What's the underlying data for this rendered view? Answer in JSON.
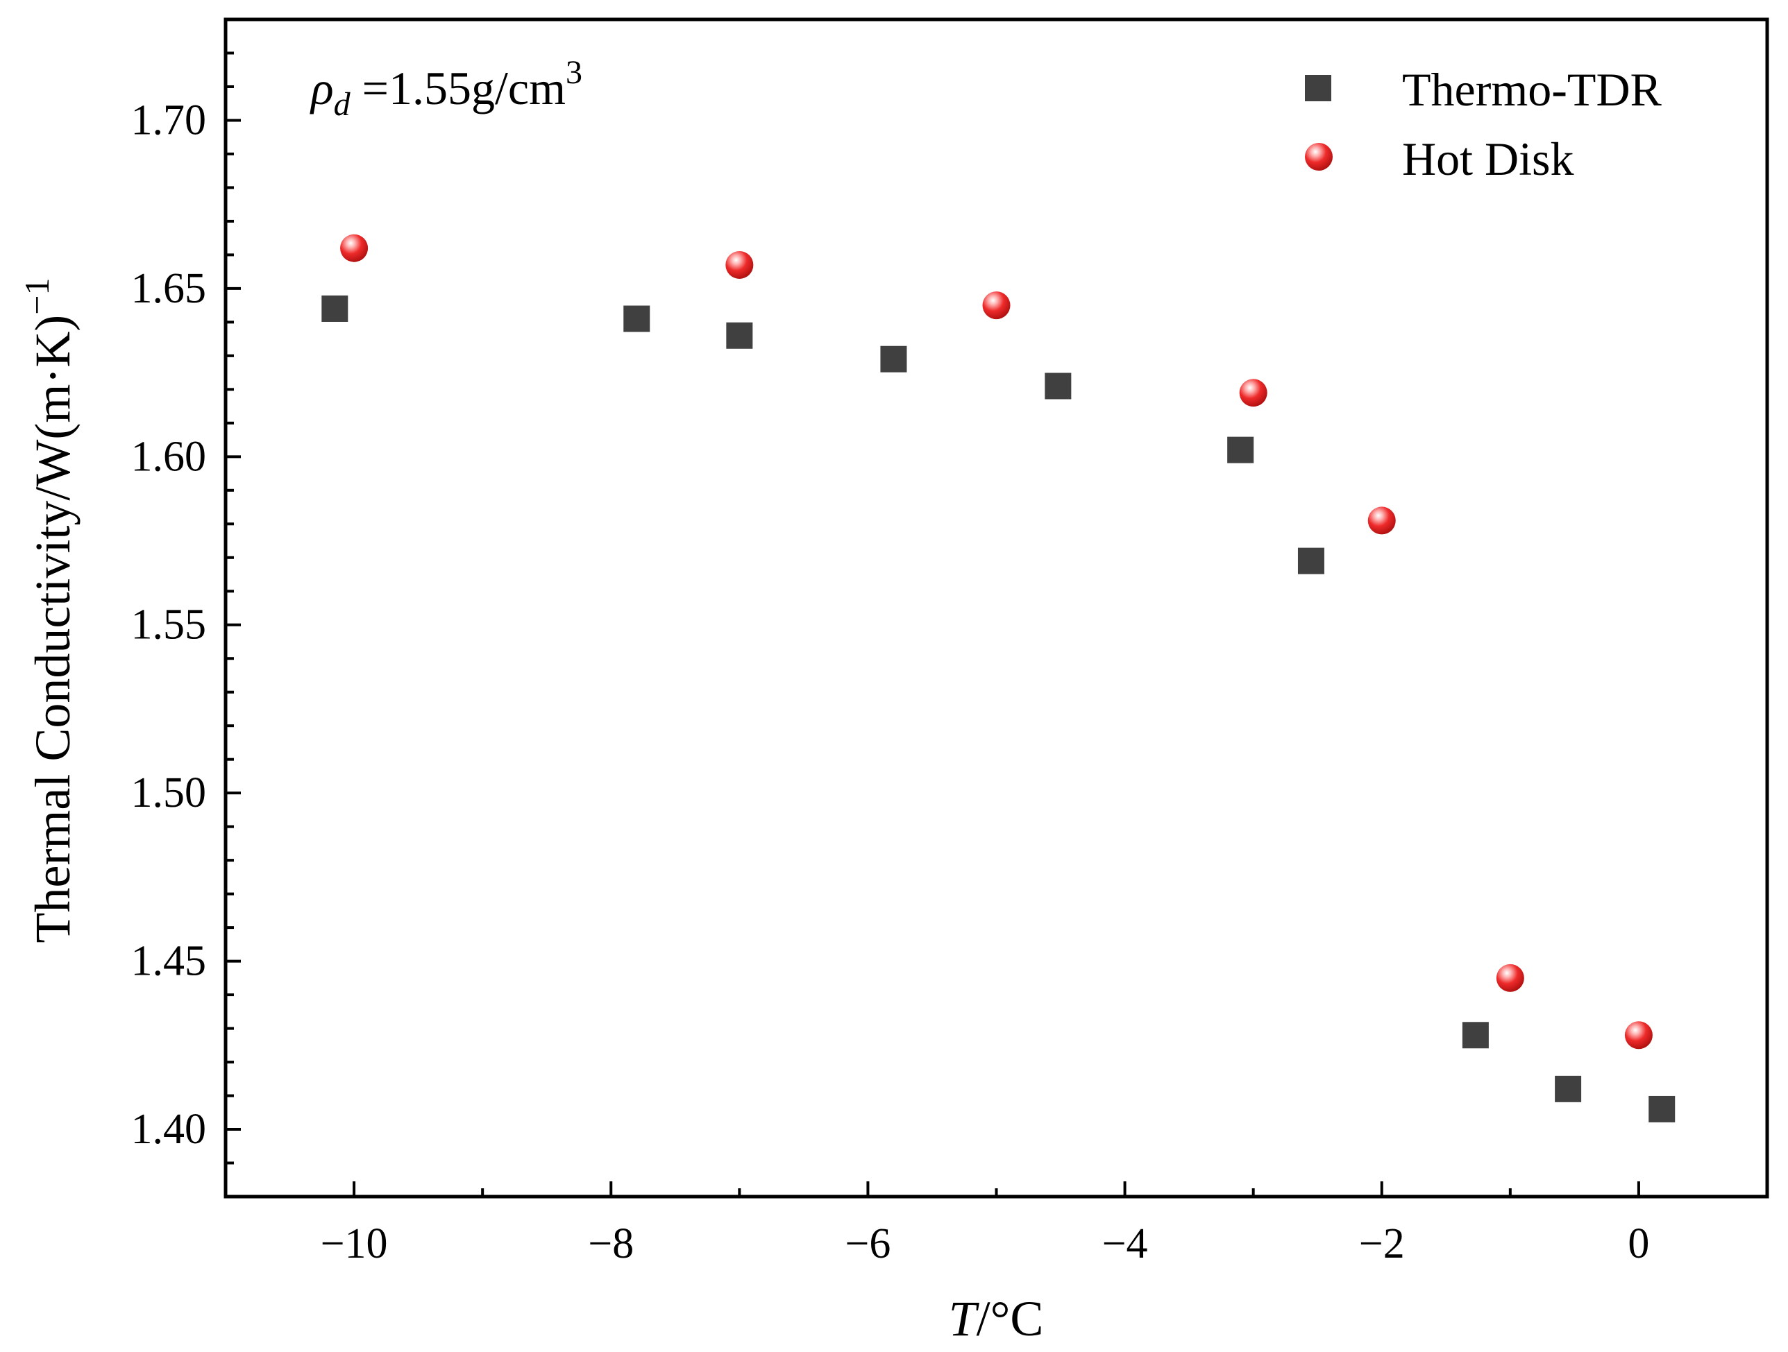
{
  "chart_data": {
    "type": "scatter",
    "title": "",
    "xlabel_italic": "T",
    "xlabel_rest": "/°C",
    "ylabel": "Thermal Conductivity/W(m·K)",
    "ylabel_sup": "−1",
    "annotation": {
      "symbol": "ρ",
      "subscript": "d",
      "text": " =1.55g/cm",
      "sup": "3"
    },
    "xlim": [
      -11,
      1
    ],
    "ylim": [
      1.38,
      1.73
    ],
    "x_ticks": [
      -10,
      -8,
      -6,
      -4,
      -2,
      0
    ],
    "x_tick_labels": [
      "−10",
      "−8",
      "−6",
      "−4",
      "−2",
      "0"
    ],
    "y_ticks": [
      1.4,
      1.45,
      1.5,
      1.55,
      1.6,
      1.65,
      1.7
    ],
    "y_tick_labels": [
      "1.40",
      "1.45",
      "1.50",
      "1.55",
      "1.60",
      "1.65",
      "1.70"
    ],
    "legend_position": "top-right",
    "series": [
      {
        "name": "Thermo-TDR",
        "marker": "square",
        "color": "#404040",
        "x": [
          -10.15,
          -7.8,
          -7.0,
          -5.8,
          -4.52,
          -3.1,
          -2.55,
          -1.27,
          -0.55,
          0.18
        ],
        "y": [
          1.644,
          1.641,
          1.636,
          1.629,
          1.621,
          1.602,
          1.569,
          1.428,
          1.412,
          1.406
        ]
      },
      {
        "name": "Hot Disk",
        "marker": "sphere",
        "color": "#ee3333",
        "x": [
          -10.0,
          -7.0,
          -5.0,
          -3.0,
          -2.0,
          -1.0,
          0.0
        ],
        "y": [
          1.662,
          1.657,
          1.645,
          1.619,
          1.581,
          1.445,
          1.428
        ]
      }
    ]
  }
}
